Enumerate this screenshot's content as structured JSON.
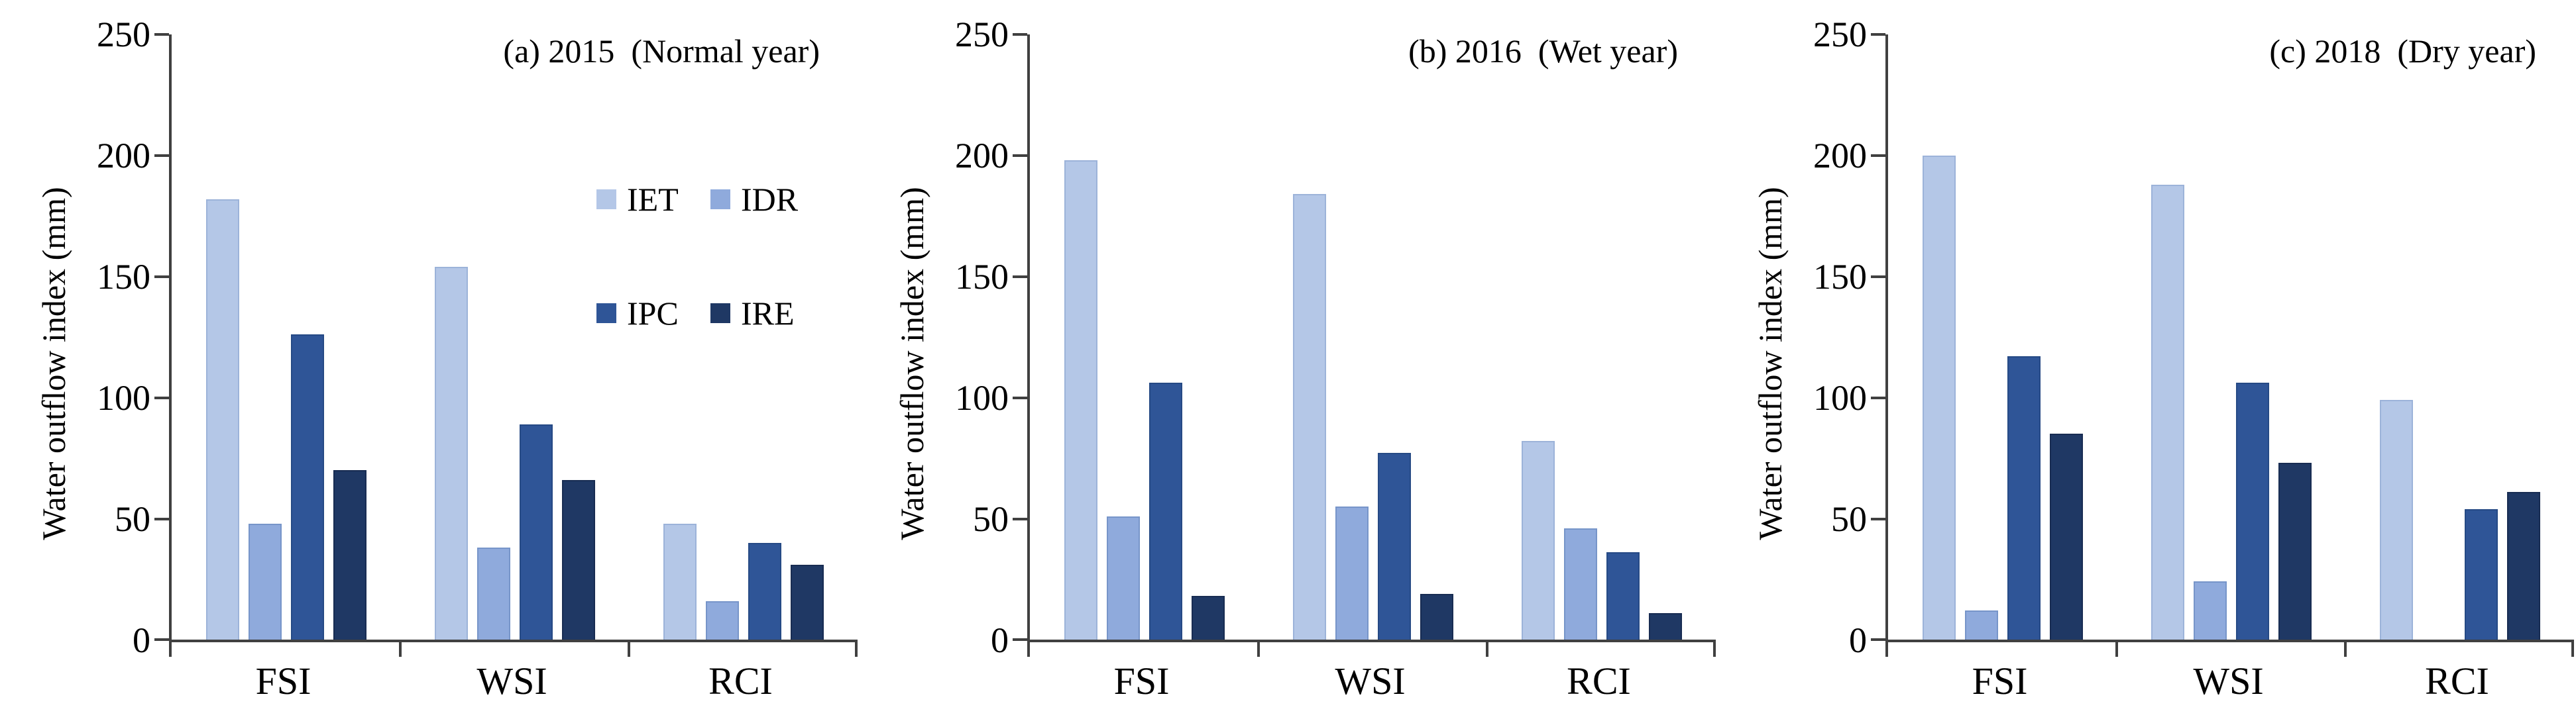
{
  "figure": {
    "background": "#ffffff",
    "axis_color": "#404040",
    "text_color": "#000000"
  },
  "axis": {
    "ylabel": "Water outflow index (mm)",
    "ytick_labels": [
      "250",
      "200",
      "150",
      "100",
      "50",
      "0"
    ],
    "ymin": 0,
    "ymax": 250,
    "ytick_step": 50
  },
  "legend": {
    "position": "upper-right-of-first-panel",
    "items": [
      {
        "label": "IET",
        "color": "#b4c7e7"
      },
      {
        "label": "IDR",
        "color": "#8faadc"
      },
      {
        "label": "IPC",
        "color": "#2f5597"
      },
      {
        "label": "IRE",
        "color": "#1f3864"
      }
    ]
  },
  "chart_data": [
    {
      "type": "bar",
      "title": "(a) 2015  (Normal year)",
      "categories": [
        "FSI",
        "WSI",
        "RCI"
      ],
      "series": [
        {
          "name": "IET",
          "color": "#b4c7e7",
          "border": "#9cb3d9",
          "values": [
            182,
            154,
            48
          ]
        },
        {
          "name": "IDR",
          "color": "#8faadc",
          "border": "#7795c9",
          "values": [
            48,
            38,
            16
          ]
        },
        {
          "name": "IPC",
          "color": "#2f5597",
          "border": "#264a85",
          "values": [
            126,
            89,
            40
          ]
        },
        {
          "name": "IRE",
          "color": "#1f3864",
          "border": "#182c52",
          "values": [
            70,
            66,
            31
          ]
        }
      ],
      "xlabel": "",
      "ylabel": "Water outflow index (mm)",
      "ylim": [
        0,
        250
      ],
      "grid": false,
      "legend_shown": true
    },
    {
      "type": "bar",
      "title": "(b) 2016  (Wet year)",
      "categories": [
        "FSI",
        "WSI",
        "RCI"
      ],
      "series": [
        {
          "name": "IET",
          "color": "#b4c7e7",
          "border": "#9cb3d9",
          "values": [
            198,
            184,
            82
          ]
        },
        {
          "name": "IDR",
          "color": "#8faadc",
          "border": "#7795c9",
          "values": [
            51,
            55,
            46
          ]
        },
        {
          "name": "IPC",
          "color": "#2f5597",
          "border": "#264a85",
          "values": [
            106,
            77,
            36
          ]
        },
        {
          "name": "IRE",
          "color": "#1f3864",
          "border": "#182c52",
          "values": [
            18,
            19,
            11
          ]
        }
      ],
      "xlabel": "",
      "ylabel": "Water outflow index (mm)",
      "ylim": [
        0,
        250
      ],
      "grid": false,
      "legend_shown": false
    },
    {
      "type": "bar",
      "title": "(c) 2018  (Dry year)",
      "categories": [
        "FSI",
        "WSI",
        "RCI"
      ],
      "series": [
        {
          "name": "IET",
          "color": "#b4c7e7",
          "border": "#9cb3d9",
          "values": [
            200,
            188,
            99
          ]
        },
        {
          "name": "IDR",
          "color": "#8faadc",
          "border": "#7795c9",
          "values": [
            12,
            24,
            0
          ]
        },
        {
          "name": "IPC",
          "color": "#2f5597",
          "border": "#264a85",
          "values": [
            117,
            106,
            54
          ]
        },
        {
          "name": "IRE",
          "color": "#1f3864",
          "border": "#182c52",
          "values": [
            85,
            73,
            61
          ]
        }
      ],
      "xlabel": "",
      "ylabel": "Water outflow index (mm)",
      "ylim": [
        0,
        250
      ],
      "grid": false,
      "legend_shown": false
    }
  ]
}
